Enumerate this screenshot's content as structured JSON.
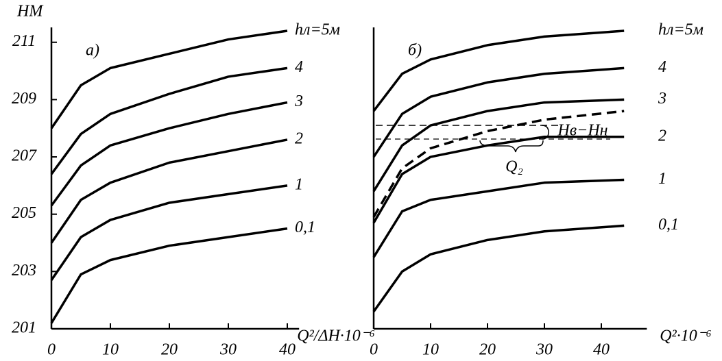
{
  "chart_data": [
    {
      "type": "line",
      "title": "а)",
      "ylabel": "НМ",
      "xlabel": "Q²/ΔH·10⁻⁶",
      "x": [
        0,
        5,
        10,
        20,
        30,
        40
      ],
      "xlim": [
        0,
        42
      ],
      "xticks": [
        0,
        10,
        20,
        30,
        40
      ],
      "ylim": [
        201,
        211.4
      ],
      "yticks": [
        201,
        203,
        205,
        207,
        209,
        211
      ],
      "series": [
        {
          "name": "hл=5м",
          "color": "#000000",
          "values": [
            208.0,
            209.5,
            210.1,
            210.6,
            211.1,
            211.4
          ]
        },
        {
          "name": "4",
          "color": "#000000",
          "values": [
            206.4,
            207.8,
            208.5,
            209.2,
            209.8,
            210.1
          ]
        },
        {
          "name": "3",
          "color": "#000000",
          "values": [
            205.3,
            206.7,
            207.4,
            208.0,
            208.5,
            208.9
          ]
        },
        {
          "name": "2",
          "color": "#000000",
          "values": [
            204.0,
            205.5,
            206.1,
            206.8,
            207.2,
            207.6
          ]
        },
        {
          "name": "1",
          "color": "#000000",
          "values": [
            202.7,
            204.2,
            204.8,
            205.4,
            205.7,
            206.0
          ]
        },
        {
          "name": "0,1",
          "color": "#000000",
          "values": [
            201.2,
            202.9,
            203.4,
            203.9,
            204.2,
            204.5
          ]
        }
      ]
    },
    {
      "type": "line",
      "title": "б)",
      "xlabel": "Q²·10⁻⁶",
      "annotations": [
        "Hв−Hн",
        "Q₂"
      ],
      "x": [
        0,
        5,
        10,
        20,
        30,
        44
      ],
      "xlim": [
        0,
        48
      ],
      "xticks": [
        0,
        10,
        20,
        30,
        40
      ],
      "ylim": [
        201,
        211.4
      ],
      "series": [
        {
          "name": "hл=5м",
          "color": "#000000",
          "values": [
            208.6,
            209.9,
            210.4,
            210.9,
            211.2,
            211.4
          ]
        },
        {
          "name": "4",
          "color": "#000000",
          "values": [
            207.0,
            208.5,
            209.1,
            209.6,
            209.9,
            210.1
          ]
        },
        {
          "name": "3",
          "color": "#000000",
          "values": [
            205.8,
            207.4,
            208.1,
            208.6,
            208.9,
            209.0
          ]
        },
        {
          "color": "#000000",
          "dashed": true,
          "values": [
            204.9,
            206.6,
            207.3,
            207.9,
            208.3,
            208.6
          ]
        },
        {
          "name": "2",
          "color": "#000000",
          "values": [
            204.7,
            206.4,
            207.0,
            207.4,
            207.7,
            207.7
          ]
        },
        {
          "name": "1",
          "color": "#000000",
          "values": [
            203.5,
            205.1,
            205.5,
            205.8,
            206.1,
            206.2
          ]
        },
        {
          "name": "0,1",
          "color": "#000000",
          "values": [
            201.6,
            203.0,
            203.6,
            204.1,
            204.4,
            204.6
          ]
        }
      ]
    }
  ]
}
